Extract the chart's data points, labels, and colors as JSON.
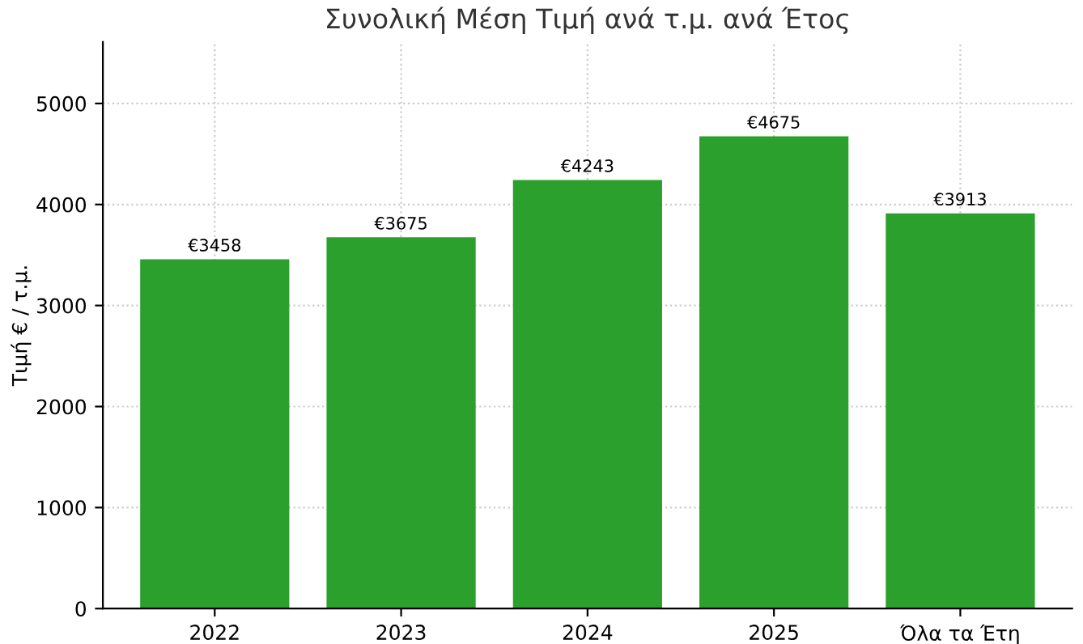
{
  "chart_data": {
    "type": "bar",
    "title": "Συνολική Μέση Τιμή ανά τ.μ. ανά Έτος",
    "ylabel": "Τιμή € / τ.μ.",
    "categories": [
      "2022",
      "2023",
      "2024",
      "2025",
      "Όλα τα Έτη"
    ],
    "values": [
      3458,
      3675,
      4243,
      4675,
      3913
    ],
    "value_labels": [
      "€3458",
      "€3675",
      "€4243",
      "€4675",
      "€3913"
    ],
    "color": "#2ca02c",
    "ylim": [
      0,
      5610
    ],
    "yticks": [
      0,
      1000,
      2000,
      3000,
      4000,
      5000
    ],
    "grid": true
  }
}
